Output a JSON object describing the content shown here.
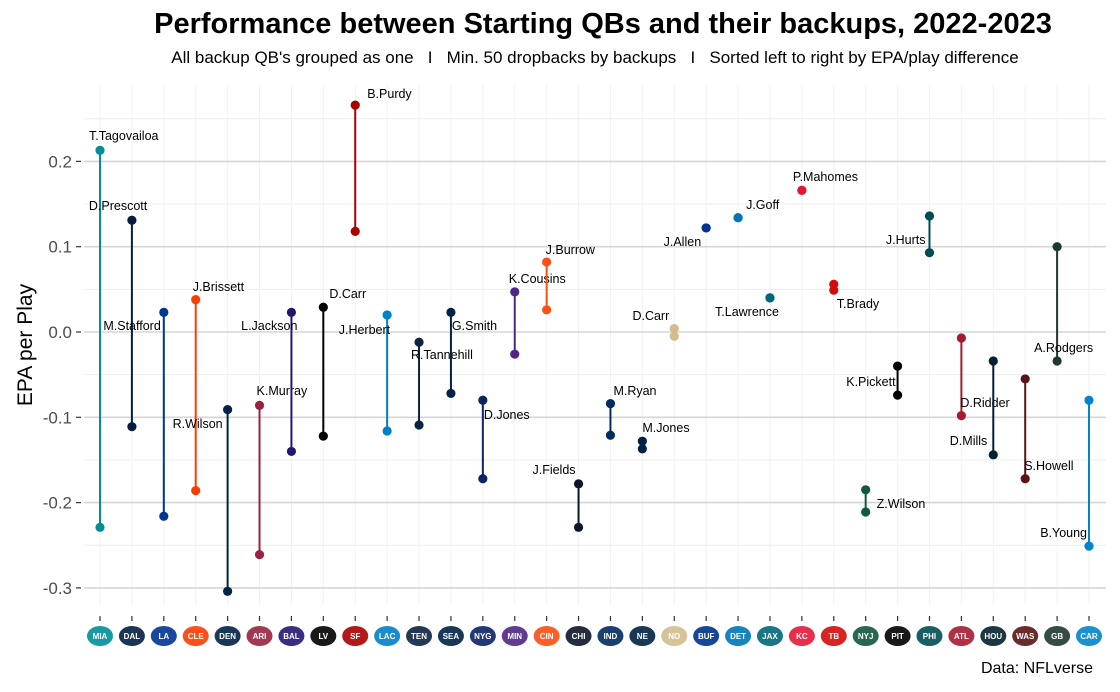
{
  "chart_data": {
    "type": "dumbbell",
    "title": "Performance between Starting QBs and their backups, 2022-2023",
    "subtitle": "All backup QB's grouped as one   I   Min. 50 dropbacks by backups   I   Sorted left to right by EPA/play difference",
    "caption": "Data: NFLverse",
    "xlabel": "",
    "ylabel": "EPA per Play",
    "ylim": [
      -0.33,
      0.29
    ],
    "yticks": [
      -0.3,
      -0.2,
      -0.1,
      0.0,
      0.1,
      0.2
    ],
    "ytick_labels": [
      "-0.3",
      "-0.2",
      "-0.1",
      "0.0",
      "0.1",
      "0.2"
    ],
    "grid": true,
    "x_axis": "team logos",
    "teams": [
      {
        "team": "MIA",
        "logo": "dolphins-logo",
        "starter": "T.Tagovailoa",
        "starter_epa": 0.213,
        "backup_epa": -0.229,
        "color": "#008E97",
        "label_pos": "above"
      },
      {
        "team": "DAL",
        "logo": "cowboys-logo",
        "starter": "D.Prescott",
        "starter_epa": 0.131,
        "backup_epa": -0.111,
        "color": "#041E42",
        "label_pos": "above"
      },
      {
        "team": "LA",
        "logo": "rams-logo",
        "starter": "M.Stafford",
        "starter_epa": 0.023,
        "backup_epa": -0.216,
        "color": "#003594",
        "label_pos": "left"
      },
      {
        "team": "CLE",
        "logo": "browns-logo",
        "starter": "J.Brissett",
        "starter_epa": 0.038,
        "backup_epa": -0.186,
        "color": "#FF3C00",
        "label_pos": "above"
      },
      {
        "team": "DEN",
        "logo": "broncos-logo",
        "starter": "R.Wilson",
        "starter_epa": -0.091,
        "backup_epa": -0.304,
        "color": "#002244",
        "label_pos": "left"
      },
      {
        "team": "ARI",
        "logo": "cardinals-logo",
        "starter": "K.Murray",
        "starter_epa": -0.086,
        "backup_epa": -0.261,
        "color": "#97233F",
        "label_pos": "above"
      },
      {
        "team": "BAL",
        "logo": "ravens-logo",
        "starter": "L.Jackson",
        "starter_epa": 0.023,
        "backup_epa": -0.14,
        "color": "#241773",
        "label_pos": "left"
      },
      {
        "team": "LV",
        "logo": "raiders-logo",
        "starter": "D.Carr",
        "starter_epa": 0.029,
        "backup_epa": -0.122,
        "color": "#000000",
        "label_pos": "above"
      },
      {
        "team": "SF",
        "logo": "49ers-logo",
        "starter": "B.Purdy",
        "starter_epa": 0.266,
        "backup_epa": 0.118,
        "color": "#AA0000",
        "label_pos": "above"
      },
      {
        "team": "LAC",
        "logo": "chargers-logo",
        "starter": "J.Herbert",
        "starter_epa": 0.02,
        "backup_epa": -0.116,
        "color": "#0080C6",
        "label_pos": "left"
      },
      {
        "team": "TEN",
        "logo": "titans-logo",
        "starter": "R.Tannehill",
        "starter_epa": -0.012,
        "backup_epa": -0.109,
        "color": "#0C2340",
        "label_pos": "below"
      },
      {
        "team": "SEA",
        "logo": "seahawks-logo",
        "starter": "G.Smith",
        "starter_epa": 0.023,
        "backup_epa": -0.072,
        "color": "#002244",
        "label_pos": "below-right"
      },
      {
        "team": "NYG",
        "logo": "giants-logo",
        "starter": "D.Jones",
        "starter_epa": -0.08,
        "backup_epa": -0.172,
        "color": "#0B2265",
        "label_pos": "below-right"
      },
      {
        "team": "MIN",
        "logo": "vikings-logo",
        "starter": "K.Cousins",
        "starter_epa": 0.047,
        "backup_epa": -0.026,
        "color": "#4F2683",
        "label_pos": "above"
      },
      {
        "team": "CIN",
        "logo": "bengals-logo",
        "starter": "J.Burrow",
        "starter_epa": 0.082,
        "backup_epa": 0.026,
        "color": "#FB4F14",
        "label_pos": "above"
      },
      {
        "team": "CHI",
        "logo": "bears-logo",
        "starter": "J.Fields",
        "starter_epa": -0.178,
        "backup_epa": -0.229,
        "color": "#0B162A",
        "label_pos": "left"
      },
      {
        "team": "IND",
        "logo": "colts-logo",
        "starter": "M.Ryan",
        "starter_epa": -0.084,
        "backup_epa": -0.121,
        "color": "#002C5F",
        "label_pos": "above"
      },
      {
        "team": "NE",
        "logo": "patriots-logo",
        "starter": "M.Jones",
        "starter_epa": -0.128,
        "backup_epa": -0.137,
        "color": "#002244",
        "label_pos": "above"
      },
      {
        "team": "NO",
        "logo": "saints-logo",
        "starter": "D.Carr",
        "starter_epa": 0.004,
        "backup_epa": -0.005,
        "color": "#D3BC8D",
        "label_pos": "left"
      },
      {
        "team": "BUF",
        "logo": "bills-logo",
        "starter": "J.Allen",
        "starter_epa": 0.122,
        "backup_epa": 0.122,
        "color": "#00338D",
        "label_pos": "below-left"
      },
      {
        "team": "DET",
        "logo": "lions-logo",
        "starter": "J.Goff",
        "starter_epa": 0.134,
        "backup_epa": 0.134,
        "color": "#0076B6",
        "label_pos": "above"
      },
      {
        "team": "JAX",
        "logo": "jaguars-logo",
        "starter": "T.Lawrence",
        "starter_epa": 0.04,
        "backup_epa": 0.04,
        "color": "#006778",
        "label_pos": "below-left"
      },
      {
        "team": "KC",
        "logo": "chiefs-logo",
        "starter": "P.Mahomes",
        "starter_epa": 0.166,
        "backup_epa": 0.166,
        "color": "#E31837",
        "label_pos": "above"
      },
      {
        "team": "TB",
        "logo": "buccaneers-logo",
        "starter": "T.Brady",
        "starter_epa": 0.056,
        "backup_epa": 0.049,
        "color": "#D50A0A",
        "label_pos": "below"
      },
      {
        "team": "NYJ",
        "logo": "jets-logo",
        "starter": "Z.Wilson",
        "starter_epa": -0.185,
        "backup_epa": -0.211,
        "color": "#125740",
        "label_pos": "right"
      },
      {
        "team": "PIT",
        "logo": "steelers-logo",
        "starter": "K.Pickett",
        "starter_epa": -0.04,
        "backup_epa": -0.074,
        "color": "#000000",
        "label_pos": "left"
      },
      {
        "team": "PHI",
        "logo": "eagles-logo",
        "starter": "J.Hurts",
        "starter_epa": 0.136,
        "backup_epa": 0.093,
        "color": "#004C54",
        "label_pos": "left"
      },
      {
        "team": "ATL",
        "logo": "falcons-logo",
        "starter": "D.Ridder",
        "starter_epa": -0.007,
        "backup_epa": -0.098,
        "color": "#A71930",
        "label_pos": "below"
      },
      {
        "team": "HOU",
        "logo": "texans-logo",
        "starter": "D.Mills",
        "starter_epa": -0.034,
        "backup_epa": -0.144,
        "color": "#03202F",
        "label_pos": "left"
      },
      {
        "team": "WAS",
        "logo": "commanders-logo",
        "starter": "S.Howell",
        "starter_epa": -0.055,
        "backup_epa": -0.172,
        "color": "#5A1414",
        "label_pos": "below"
      },
      {
        "team": "GB",
        "logo": "packers-logo",
        "starter": "A.Rodgers",
        "starter_epa": 0.1,
        "backup_epa": -0.034,
        "color": "#203731",
        "label_pos": "below"
      },
      {
        "team": "CAR",
        "logo": "panthers-logo",
        "starter": "B.Young",
        "starter_epa": -0.251,
        "backup_epa": -0.08,
        "color": "#0085CA",
        "label_pos": "left"
      }
    ]
  }
}
